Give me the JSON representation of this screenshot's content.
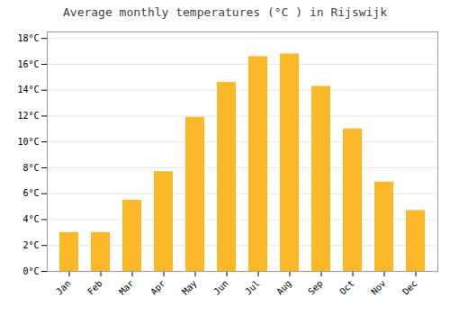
{
  "chart_data": {
    "type": "bar",
    "title": "Average monthly temperatures (°C ) in Rijswijk",
    "categories": [
      "Jan",
      "Feb",
      "Mar",
      "Apr",
      "May",
      "Jun",
      "Jul",
      "Aug",
      "Sep",
      "Oct",
      "Nov",
      "Dec"
    ],
    "values": [
      3.0,
      3.0,
      5.5,
      7.7,
      11.9,
      14.6,
      16.6,
      16.8,
      14.3,
      11.0,
      6.9,
      4.7
    ],
    "color": "#FDB827",
    "ylim": [
      0,
      18.5
    ],
    "yticks": [
      {
        "value": 0,
        "label": "0°C"
      },
      {
        "value": 2,
        "label": "2°C"
      },
      {
        "value": 4,
        "label": "4°C"
      },
      {
        "value": 6,
        "label": "6°C"
      },
      {
        "value": 8,
        "label": "8°C"
      },
      {
        "value": 10,
        "label": "10°C"
      },
      {
        "value": 12,
        "label": "12°C"
      },
      {
        "value": 14,
        "label": "14°C"
      },
      {
        "value": 16,
        "label": "16°C"
      },
      {
        "value": 18,
        "label": "18°C"
      }
    ],
    "grid": true
  }
}
